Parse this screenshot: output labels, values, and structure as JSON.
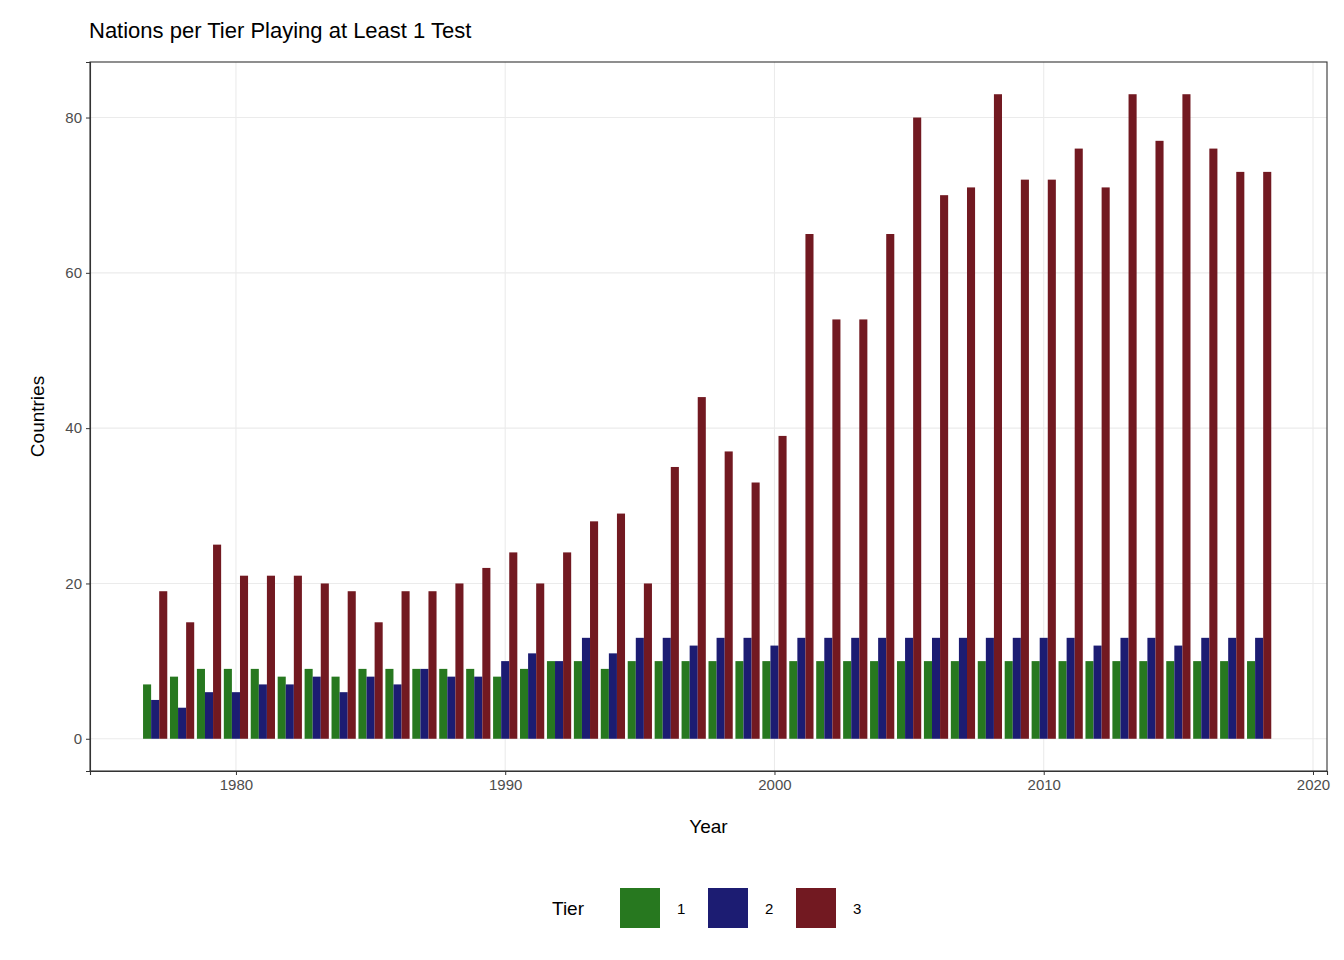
{
  "chart_data": {
    "type": "bar",
    "title": "Nations per Tier Playing at Least 1 Test",
    "x_label": "Year",
    "y_label": "Countries",
    "legend_title": "Tier",
    "legend": "bottom",
    "grid": true,
    "x": [
      1977,
      1978,
      1979,
      1980,
      1981,
      1982,
      1983,
      1984,
      1985,
      1986,
      1987,
      1988,
      1989,
      1990,
      1991,
      1992,
      1993,
      1994,
      1995,
      1996,
      1997,
      1998,
      1999,
      2000,
      2001,
      2002,
      2003,
      2004,
      2005,
      2006,
      2007,
      2008,
      2009,
      2010,
      2011,
      2012,
      2013,
      2014,
      2015,
      2016,
      2017,
      2018
    ],
    "series": [
      {
        "name": "1",
        "color": "#27781f",
        "values": [
          7,
          8,
          9,
          9,
          9,
          8,
          9,
          8,
          9,
          9,
          9,
          9,
          9,
          8,
          9,
          10,
          10,
          9,
          10,
          10,
          10,
          10,
          10,
          10,
          10,
          10,
          10,
          10,
          10,
          10,
          10,
          10,
          10,
          10,
          10,
          10,
          10,
          10,
          10,
          10,
          10,
          10
        ]
      },
      {
        "name": "2",
        "color": "#1c1c72",
        "values": [
          5,
          4,
          6,
          6,
          7,
          7,
          8,
          6,
          8,
          7,
          9,
          8,
          8,
          10,
          11,
          10,
          13,
          11,
          13,
          13,
          12,
          13,
          13,
          12,
          13,
          13,
          13,
          13,
          13,
          13,
          13,
          13,
          13,
          13,
          13,
          12,
          13,
          13,
          12,
          13,
          13,
          13
        ]
      },
      {
        "name": "3",
        "color": "#721921",
        "values": [
          19,
          15,
          25,
          21,
          21,
          21,
          20,
          19,
          15,
          19,
          19,
          20,
          22,
          24,
          20,
          24,
          28,
          29,
          20,
          35,
          44,
          37,
          33,
          39,
          65,
          54,
          54,
          65,
          80,
          70,
          71,
          83,
          72,
          72,
          76,
          71,
          83,
          77,
          83,
          76,
          73,
          73
        ]
      }
    ],
    "xlim": [
      1974.58,
      2020.52
    ],
    "xticks": [
      1980,
      1990,
      2000,
      2010,
      2020
    ],
    "ylim": [
      -4.15,
      87.15
    ],
    "yticks": [
      0,
      20,
      40,
      60,
      80
    ]
  }
}
